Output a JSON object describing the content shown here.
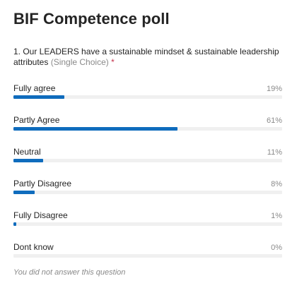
{
  "poll": {
    "title": "BIF Competence poll",
    "question": {
      "text": "1. Our LEADERS have a sustainable mindset & sustainable leadership attributes",
      "hint": "(Single Choice)",
      "required_mark": "*"
    },
    "options": [
      {
        "label": "Fully agree",
        "percent_text": "19%",
        "percent": 19
      },
      {
        "label": "Partly Agree",
        "percent_text": "61%",
        "percent": 61
      },
      {
        "label": "Neutral",
        "percent_text": "11%",
        "percent": 11
      },
      {
        "label": "Partly Disagree",
        "percent_text": "8%",
        "percent": 8
      },
      {
        "label": "Fully Disagree",
        "percent_text": "1%",
        "percent": 1
      },
      {
        "label": "Dont know",
        "percent_text": "0%",
        "percent": 0
      }
    ],
    "footer": "You did not answer this question"
  },
  "colors": {
    "bar_fill": "#0f6cbd",
    "bar_track": "#f0f0f0",
    "required": "#c4314b",
    "muted": "#8a8a8a"
  }
}
